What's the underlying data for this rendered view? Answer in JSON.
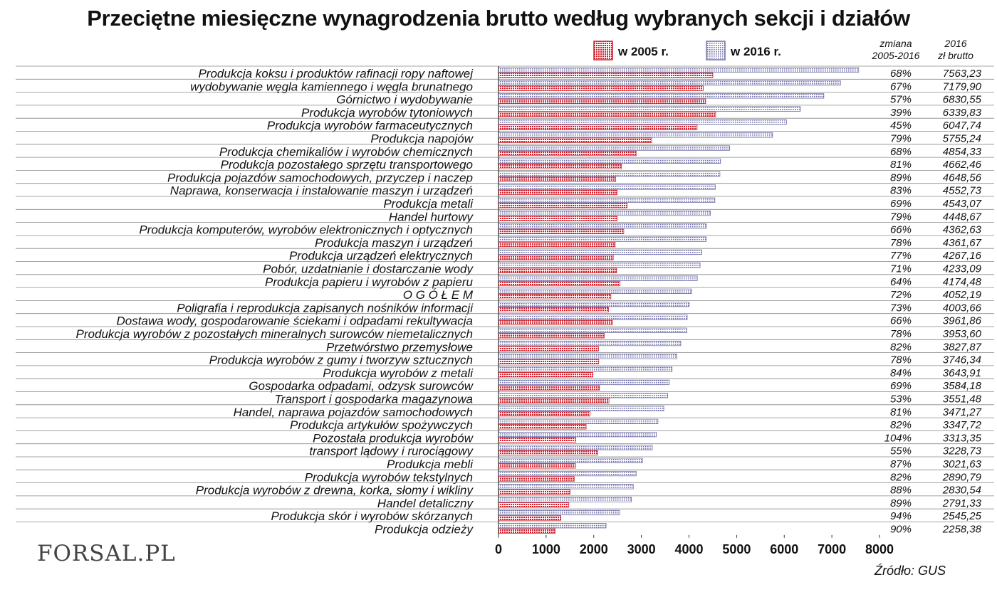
{
  "title": "Przeciętne miesięczne wynagrodzenia brutto według wybranych sekcji i działów",
  "legend": {
    "s2005": "w 2005 r.",
    "s2016": "w 2016 r."
  },
  "columns": {
    "change_line1": "zmiana",
    "change_line2": "2005-2016",
    "value_line1": "2016",
    "value_line2": "zł brutto"
  },
  "logo": "FORSAL.PL",
  "source": "Źródło: GUS",
  "colors": {
    "s2005": "#d0202c",
    "s2016": "#7a7ab0"
  },
  "chart_data": {
    "type": "bar",
    "orientation": "horizontal",
    "xlim": [
      0,
      8000
    ],
    "xticks": [
      "0",
      "1000",
      "2000",
      "3000",
      "4000",
      "5000",
      "6000",
      "7000",
      "8000"
    ],
    "categories": [
      "Produkcja koksu i produktów rafinacji ropy naftowej",
      "wydobywanie węgla kamiennego i węgla brunatnego",
      "Górnictwo i wydobywanie",
      "Produkcja wyrobów tytoniowych",
      "Produkcja wyrobów farmaceutycznych",
      "Produkcja napojów",
      "Produkcja chemikaliów i wyrobów chemicznych",
      "Produkcja pozostałego sprzętu transportowego",
      "Produkcja pojazdów samochodowych, przyczep i naczep",
      "Naprawa, konserwacja i instalowanie maszyn i urządzeń",
      "Produkcja metali",
      "Handel hurtowy",
      "Produkcja komputerów, wyrobów elektronicznych i optycznych",
      "Produkcja maszyn i urządzeń",
      "Produkcja urządzeń elektrycznych",
      "Pobór, uzdatnianie i dostarczanie wody",
      "Produkcja papieru i wyrobów z papieru",
      "O G Ó Ł E M",
      "Poligrafia i reprodukcja zapisanych nośników informacji",
      "Dostawa wody, gospodarowanie ściekami i odpadami rekultywacja",
      "Produkcja wyrobów z pozostałych mineralnych surowców niemetalicznych",
      "Przetwórstwo przemysłowe",
      "Produkcja wyrobów z gumy i tworzyw sztucznych",
      "Produkcja wyrobów z metali",
      "Gospodarka odpadami, odzysk surowców",
      "Transport i gospodarka magazynowa",
      "Handel, naprawa pojazdów samochodowych",
      "Produkcja artykułów spożywczych",
      "Pozostała produkcja wyrobów",
      "transport lądowy i rurociągowy",
      "Produkcja mebli",
      "Produkcja wyrobów tekstylnych",
      "Produkcja wyrobów z drewna, korka, słomy i wikliny",
      "Handel detaliczny",
      "Produkcja skór i wyrobów skórzanych",
      "Produkcja odzieży"
    ],
    "series": [
      {
        "name": "w 2005 r.",
        "values": [
          4500,
          4300,
          4350,
          4560,
          4170,
          3215,
          2890,
          2580,
          2460,
          2490,
          2700,
          2490,
          2630,
          2450,
          2410,
          2480,
          2550,
          2360,
          2310,
          2390,
          2220,
          2100,
          2105,
          1980,
          2120,
          2320,
          1920,
          1840,
          1620,
          2080,
          1615,
          1590,
          1505,
          1477,
          1310,
          1190
        ]
      },
      {
        "name": "w 2016 r.",
        "values": [
          7563.23,
          7179.9,
          6830.55,
          6339.83,
          6047.74,
          5755.24,
          4854.33,
          4662.46,
          4648.56,
          4552.73,
          4543.07,
          4448.67,
          4362.63,
          4361.67,
          4267.16,
          4233.09,
          4174.48,
          4052.19,
          4003.66,
          3961.86,
          3953.6,
          3827.87,
          3746.34,
          3643.91,
          3584.18,
          3551.48,
          3471.27,
          3347.72,
          3313.35,
          3228.73,
          3021.63,
          2890.79,
          2830.54,
          2791.33,
          2545.25,
          2258.38
        ]
      }
    ],
    "change_labels": [
      "68%",
      "67%",
      "57%",
      "39%",
      "45%",
      "79%",
      "68%",
      "81%",
      "89%",
      "83%",
      "69%",
      "79%",
      "66%",
      "78%",
      "77%",
      "71%",
      "64%",
      "72%",
      "73%",
      "66%",
      "78%",
      "82%",
      "78%",
      "84%",
      "69%",
      "53%",
      "81%",
      "82%",
      "104%",
      "55%",
      "87%",
      "82%",
      "88%",
      "89%",
      "94%",
      "90%"
    ],
    "value_labels": [
      "7563,23",
      "7179,90",
      "6830,55",
      "6339,83",
      "6047,74",
      "5755,24",
      "4854,33",
      "4662,46",
      "4648,56",
      "4552,73",
      "4543,07",
      "4448,67",
      "4362,63",
      "4361,67",
      "4267,16",
      "4233,09",
      "4174,48",
      "4052,19",
      "4003,66",
      "3961,86",
      "3953,60",
      "3827,87",
      "3746,34",
      "3643,91",
      "3584,18",
      "3551,48",
      "3471,27",
      "3347,72",
      "3313,35",
      "3228,73",
      "3021,63",
      "2890,79",
      "2830,54",
      "2791,33",
      "2545,25",
      "2258,38"
    ]
  }
}
